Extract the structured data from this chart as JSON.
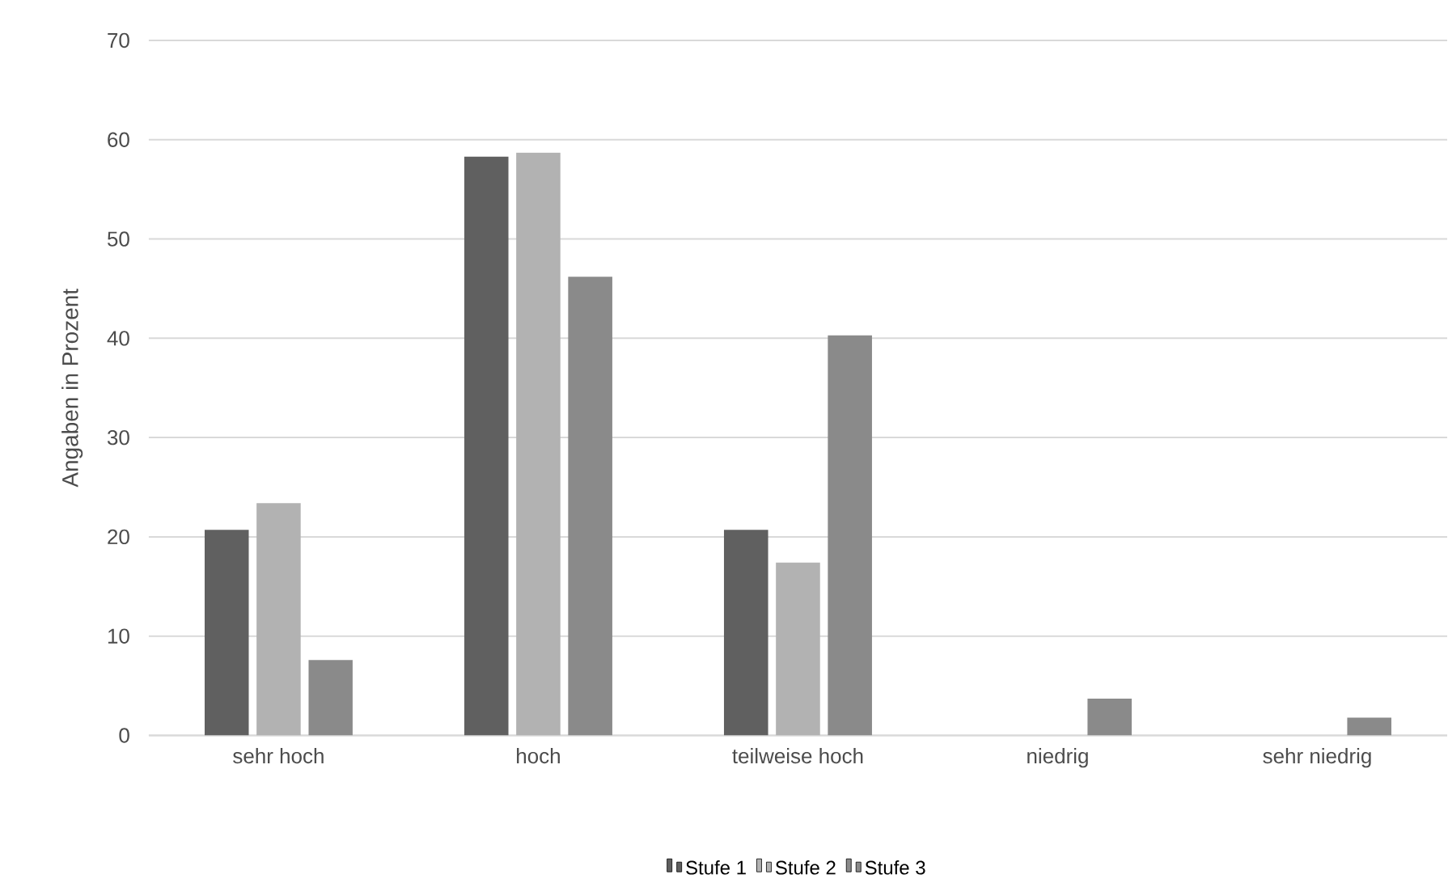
{
  "chart_data": {
    "type": "bar",
    "ylabel": "Angaben in Prozent",
    "categories": [
      "sehr hoch",
      "hoch",
      "teilweise hoch",
      "niedrig",
      "sehr niedrig"
    ],
    "series": [
      {
        "name": "Stufe 1",
        "color": "#606060",
        "values": [
          20.7,
          58.3,
          20.7,
          0,
          0
        ]
      },
      {
        "name": "Stufe 2",
        "color": "#b2b2b2",
        "values": [
          23.4,
          58.7,
          17.4,
          0,
          0
        ]
      },
      {
        "name": "Stufe 3",
        "color": "#8a8a8a",
        "values": [
          7.6,
          46.2,
          40.3,
          3.7,
          1.8
        ]
      }
    ],
    "ylim": [
      0,
      70
    ],
    "yticks": [
      0,
      10,
      20,
      30,
      40,
      50,
      60,
      70
    ],
    "grid": "y",
    "legend": "bottom"
  }
}
